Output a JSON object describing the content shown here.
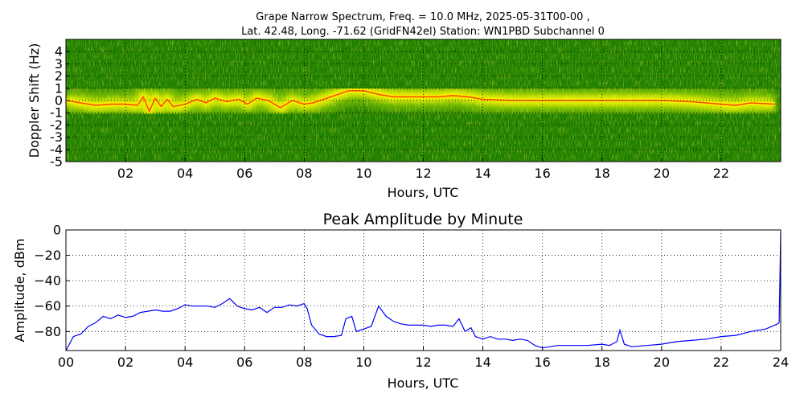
{
  "figure": {
    "spectrogram_title_line1": "Grape Narrow Spectrum, Freq. = 10.0 MHz, 2025-05-31T00-00 ,",
    "spectrogram_title_line2": "Lat.  42.48, Long. -71.62 (GridFN42el) Station: WN1PBD Subchannel 0",
    "amplitude_title": "Peak Amplitude by Minute"
  },
  "chart_data": [
    {
      "type": "heatmap",
      "title": "Grape Narrow Spectrum, Freq. = 10.0 MHz, 2025-05-31T00-00 , Lat.  42.48, Long. -71.62 (GridFN42el) Station: WN1PBD Subchannel 0",
      "xlabel": "Hours, UTC",
      "ylabel": "Doppler Shift (Hz)",
      "xlim": [
        0,
        24
      ],
      "ylim": [
        -5,
        5
      ],
      "x_ticks": [
        2,
        4,
        6,
        8,
        10,
        12,
        14,
        16,
        18,
        20,
        22
      ],
      "x_tick_labels": [
        "02",
        "04",
        "06",
        "08",
        "10",
        "12",
        "14",
        "16",
        "18",
        "20",
        "22"
      ],
      "y_ticks": [
        -5,
        -4,
        -3,
        -2,
        -1,
        0,
        1,
        2,
        3,
        4
      ],
      "y_tick_labels": [
        "-5",
        "-4",
        "-3",
        "-2",
        "-1",
        "0",
        "1",
        "2",
        "3",
        "4"
      ],
      "grid": true,
      "colors": {
        "background": "#1f7f00",
        "mid": "#8fcf00",
        "high": "#f2f200",
        "peak": "#ff3000"
      },
      "doppler_trace": {
        "hours": [
          0,
          0.5,
          1,
          1.5,
          2,
          2.4,
          2.6,
          2.8,
          3,
          3.2,
          3.4,
          3.6,
          4,
          4.4,
          4.7,
          5,
          5.4,
          5.8,
          6.1,
          6.4,
          6.8,
          7.2,
          7.6,
          8,
          8.3,
          9.5,
          10,
          10.5,
          11,
          11.5,
          12,
          12.5,
          13,
          13.5,
          14,
          15,
          16,
          17,
          18,
          19,
          20,
          21,
          21.5,
          22,
          22.5,
          23,
          23.8
        ],
        "hz": [
          0,
          -0.2,
          -0.4,
          -0.3,
          -0.3,
          -0.4,
          0.3,
          -0.9,
          0.2,
          -0.5,
          0.1,
          -0.5,
          -0.3,
          0.1,
          -0.2,
          0.2,
          -0.1,
          0.1,
          -0.3,
          0.2,
          0,
          -0.6,
          0,
          -0.3,
          -0.2,
          0.8,
          0.8,
          0.5,
          0.3,
          0.3,
          0.3,
          0.3,
          0.4,
          0.3,
          0.1,
          0,
          0,
          0,
          0,
          0,
          0,
          -0.1,
          -0.2,
          -0.3,
          -0.4,
          -0.2,
          -0.3
        ]
      }
    },
    {
      "type": "line",
      "title": "Peak Amplitude by Minute",
      "xlabel": "Hours, UTC",
      "ylabel": "Amplitude, dBm",
      "xlim": [
        0,
        24
      ],
      "ylim": [
        -95,
        0
      ],
      "x_ticks": [
        0,
        2,
        4,
        6,
        8,
        10,
        12,
        14,
        16,
        18,
        20,
        22,
        24
      ],
      "x_tick_labels": [
        "00",
        "02",
        "04",
        "06",
        "08",
        "10",
        "12",
        "14",
        "16",
        "18",
        "20",
        "22",
        "24"
      ],
      "y_ticks": [
        0,
        -20,
        -40,
        -60,
        -80
      ],
      "y_tick_labels": [
        "0",
        "−20",
        "−40",
        "−60",
        "−80"
      ],
      "grid": true,
      "series_color": "#0000ff",
      "x": [
        0,
        0.25,
        0.5,
        0.75,
        1,
        1.25,
        1.5,
        1.75,
        2,
        2.25,
        2.5,
        2.75,
        3,
        3.25,
        3.5,
        3.75,
        4,
        4.25,
        4.5,
        4.75,
        5,
        5.25,
        5.5,
        5.75,
        6,
        6.25,
        6.5,
        6.75,
        7,
        7.25,
        7.5,
        7.75,
        8,
        8.1,
        8.25,
        8.5,
        8.75,
        9,
        9.25,
        9.4,
        9.6,
        9.75,
        10,
        10.25,
        10.5,
        10.75,
        11,
        11.25,
        11.5,
        11.75,
        12,
        12.25,
        12.5,
        12.75,
        13,
        13.2,
        13.4,
        13.6,
        13.75,
        14,
        14.25,
        14.5,
        14.75,
        15,
        15.25,
        15.5,
        15.75,
        16,
        16.5,
        17,
        17.5,
        18,
        18.25,
        18.5,
        18.6,
        18.75,
        19,
        19.5,
        20,
        20.5,
        21,
        21.5,
        22,
        22.5,
        23,
        23.5,
        23.9,
        23.95,
        24
      ],
      "y": [
        -95,
        -84,
        -82,
        -76,
        -73,
        -68,
        -70,
        -67,
        -69,
        -68,
        -65,
        -64,
        -63,
        -64,
        -64,
        -62,
        -59,
        -60,
        -60,
        -60,
        -61,
        -58,
        -54,
        -60,
        -62,
        -63,
        -61,
        -65,
        -61,
        -61,
        -59,
        -60,
        -58,
        -62,
        -75,
        -82,
        -84,
        -84,
        -83,
        -70,
        -68,
        -80,
        -78,
        -76,
        -60,
        -68,
        -72,
        -74,
        -75,
        -75,
        -75,
        -76,
        -75,
        -75,
        -76,
        -70,
        -80,
        -77,
        -84,
        -86,
        -84,
        -86,
        -86,
        -87,
        -86,
        -87,
        -91,
        -93,
        -91,
        -91,
        -91,
        -90,
        -91,
        -88,
        -79,
        -90,
        -92,
        -91,
        -90,
        -88,
        -87,
        -86,
        -84,
        -83,
        -80,
        -78,
        -74,
        -73,
        -2
      ]
    }
  ]
}
